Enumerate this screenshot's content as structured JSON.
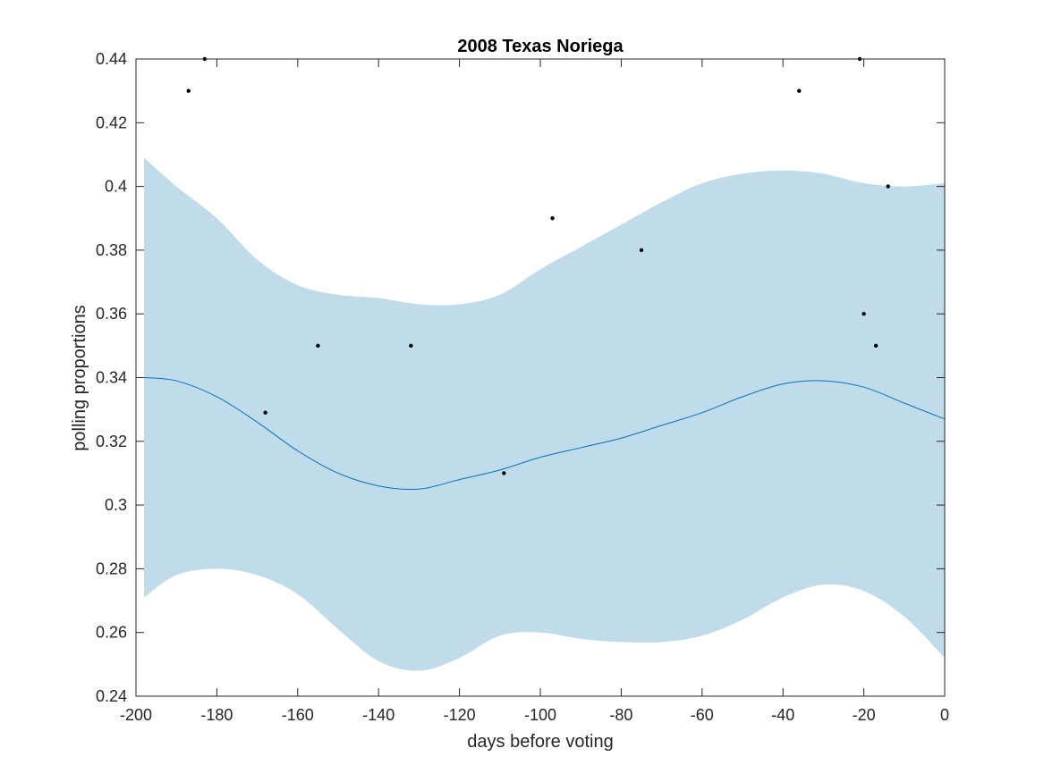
{
  "chart_data": {
    "type": "line",
    "title": "2008 Texas Noriega",
    "xlabel": "days before voting",
    "ylabel": "polling proportions",
    "xlim": [
      -200,
      0
    ],
    "ylim": [
      0.24,
      0.44
    ],
    "xticks": [
      -200,
      -180,
      -160,
      -140,
      -120,
      -100,
      -80,
      -60,
      -40,
      -20,
      0
    ],
    "yticks": [
      0.24,
      0.26,
      0.28,
      0.3,
      0.32,
      0.34,
      0.36,
      0.38,
      0.4,
      0.42,
      0.44
    ],
    "grid": false,
    "band": {
      "x": [
        -198,
        -190,
        -180,
        -170,
        -160,
        -150,
        -140,
        -130,
        -120,
        -110,
        -100,
        -90,
        -80,
        -70,
        -60,
        -50,
        -40,
        -30,
        -20,
        -10,
        0
      ],
      "upper": [
        0.409,
        0.4,
        0.39,
        0.377,
        0.369,
        0.366,
        0.365,
        0.363,
        0.363,
        0.366,
        0.374,
        0.381,
        0.388,
        0.395,
        0.401,
        0.404,
        0.405,
        0.404,
        0.401,
        0.4,
        0.401
      ],
      "lower": [
        0.271,
        0.278,
        0.28,
        0.278,
        0.272,
        0.261,
        0.251,
        0.248,
        0.252,
        0.259,
        0.26,
        0.258,
        0.257,
        0.257,
        0.259,
        0.264,
        0.271,
        0.275,
        0.273,
        0.265,
        0.252
      ]
    },
    "series": [
      {
        "type": "line",
        "x": [
          -198,
          -190,
          -180,
          -170,
          -160,
          -150,
          -140,
          -130,
          -120,
          -110,
          -100,
          -90,
          -80,
          -70,
          -60,
          -50,
          -40,
          -30,
          -20,
          -10,
          0
        ],
        "values": [
          0.34,
          0.339,
          0.334,
          0.326,
          0.317,
          0.31,
          0.306,
          0.305,
          0.308,
          0.311,
          0.315,
          0.318,
          0.321,
          0.325,
          0.329,
          0.334,
          0.338,
          0.339,
          0.337,
          0.332,
          0.327
        ]
      },
      {
        "type": "scatter",
        "x": [
          -187,
          -183,
          -168,
          -155,
          -132,
          -109,
          -97,
          -75,
          -36,
          -21,
          -20,
          -17,
          -14
        ],
        "values": [
          0.43,
          0.44,
          0.329,
          0.35,
          0.35,
          0.31,
          0.39,
          0.38,
          0.43,
          0.44,
          0.36,
          0.35,
          0.4
        ]
      }
    ],
    "colors": {
      "band": "#c0dcea",
      "line": "#0072bd",
      "points": "#000000",
      "axes": "#262626"
    }
  }
}
